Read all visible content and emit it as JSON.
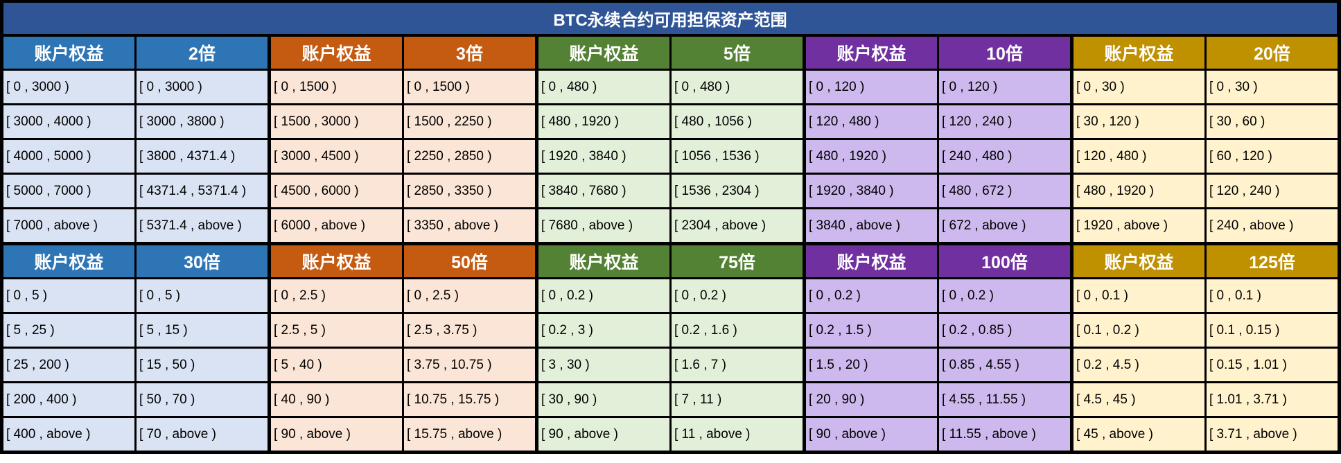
{
  "title": "BTC永续合约可用担保资产范围",
  "equity_header": "账户权益",
  "panels": [
    {
      "palette": "blue",
      "header": "2倍",
      "rows": [
        [
          "[ 0 , 3000 )",
          "[ 0 , 3000 )"
        ],
        [
          "[ 3000 , 4000 )",
          "[ 3000 , 3800 )"
        ],
        [
          "[ 4000 , 5000 )",
          "[ 3800 , 4371.4 )"
        ],
        [
          "[ 5000 , 7000 )",
          "[ 4371.4 , 5371.4 )"
        ],
        [
          "[ 7000 , above )",
          "[ 5371.4 , above )"
        ]
      ]
    },
    {
      "palette": "orange",
      "header": "3倍",
      "rows": [
        [
          "[ 0 , 1500 )",
          "[ 0 , 1500 )"
        ],
        [
          "[ 1500 , 3000 )",
          "[ 1500 , 2250 )"
        ],
        [
          "[ 3000 , 4500 )",
          "[ 2250 , 2850 )"
        ],
        [
          "[ 4500 , 6000 )",
          "[ 2850 , 3350 )"
        ],
        [
          "[ 6000 , above )",
          "[ 3350 , above )"
        ]
      ]
    },
    {
      "palette": "green",
      "header": "5倍",
      "rows": [
        [
          "[ 0 , 480 )",
          "[ 0 , 480 )"
        ],
        [
          "[ 480 , 1920 )",
          "[ 480 , 1056 )"
        ],
        [
          "[ 1920 , 3840 )",
          "[ 1056 , 1536 )"
        ],
        [
          "[ 3840 , 7680 )",
          "[ 1536 , 2304 )"
        ],
        [
          "[ 7680 , above )",
          "[ 2304 , above )"
        ]
      ]
    },
    {
      "palette": "purple",
      "header": "10倍",
      "rows": [
        [
          "[ 0 , 120 )",
          "[ 0 , 120 )"
        ],
        [
          "[ 120 , 480 )",
          "[ 120 , 240 )"
        ],
        [
          "[ 480 , 1920 )",
          "[ 240 , 480 )"
        ],
        [
          "[ 1920 , 3840 )",
          "[ 480 , 672 )"
        ],
        [
          "[ 3840 , above )",
          "[ 672 , above )"
        ]
      ]
    },
    {
      "palette": "gold",
      "header": "20倍",
      "rows": [
        [
          "[ 0 , 30 )",
          "[ 0 , 30 )"
        ],
        [
          "[ 30 , 120 )",
          "[ 30 , 60 )"
        ],
        [
          "[ 120 , 480 )",
          "[ 60 , 120 )"
        ],
        [
          "[ 480 , 1920 )",
          "[ 120 , 240 )"
        ],
        [
          "[ 1920 , above )",
          "[ 240 , above )"
        ]
      ]
    },
    {
      "palette": "blue",
      "header": "30倍",
      "rows": [
        [
          "[ 0 , 5 )",
          "[ 0 , 5 )"
        ],
        [
          "[ 5 , 25 )",
          "[ 5 , 15 )"
        ],
        [
          "[ 25 , 200 )",
          "[ 15 , 50 )"
        ],
        [
          "[ 200 , 400 )",
          "[ 50 , 70 )"
        ],
        [
          "[ 400 , above )",
          "[ 70 , above )"
        ]
      ]
    },
    {
      "palette": "orange",
      "header": "50倍",
      "rows": [
        [
          "[ 0 , 2.5 )",
          "[ 0 , 2.5 )"
        ],
        [
          "[ 2.5 , 5 )",
          "[ 2.5 , 3.75 )"
        ],
        [
          "[ 5 , 40 )",
          "[ 3.75 , 10.75 )"
        ],
        [
          "[ 40 , 90 )",
          "[ 10.75 , 15.75 )"
        ],
        [
          "[ 90 , above )",
          "[ 15.75 , above )"
        ]
      ]
    },
    {
      "palette": "green",
      "header": "75倍",
      "rows": [
        [
          "[ 0 , 0.2 )",
          "[ 0 , 0.2 )"
        ],
        [
          "[ 0.2 , 3 )",
          "[ 0.2 , 1.6 )"
        ],
        [
          "[ 3 , 30 )",
          "[ 1.6 , 7 )"
        ],
        [
          "[ 30 , 90 )",
          "[ 7 , 11 )"
        ],
        [
          "[ 90 , above )",
          "[ 11 , above )"
        ]
      ]
    },
    {
      "palette": "purple",
      "header": "100倍",
      "rows": [
        [
          "[ 0 , 0.2 )",
          "[ 0 , 0.2 )"
        ],
        [
          "[ 0.2 , 1.5 )",
          "[ 0.2 , 0.85 )"
        ],
        [
          "[ 1.5 , 20 )",
          "[ 0.85 , 4.55 )"
        ],
        [
          "[ 20 , 90 )",
          "[ 4.55 , 11.55 )"
        ],
        [
          "[ 90 , above )",
          "[ 11.55 , above )"
        ]
      ]
    },
    {
      "palette": "gold",
      "header": "125倍",
      "rows": [
        [
          "[ 0 , 0.1 )",
          "[ 0 , 0.1 )"
        ],
        [
          "[ 0.1 , 0.2 )",
          "[ 0.1 , 0.15 )"
        ],
        [
          "[ 0.2 , 4.5 )",
          "[ 0.15 , 1.01 )"
        ],
        [
          "[ 4.5 , 45 )",
          "[ 1.01 , 3.71 )"
        ],
        [
          "[ 45 , above )",
          "[ 3.71 , above )"
        ]
      ]
    }
  ]
}
